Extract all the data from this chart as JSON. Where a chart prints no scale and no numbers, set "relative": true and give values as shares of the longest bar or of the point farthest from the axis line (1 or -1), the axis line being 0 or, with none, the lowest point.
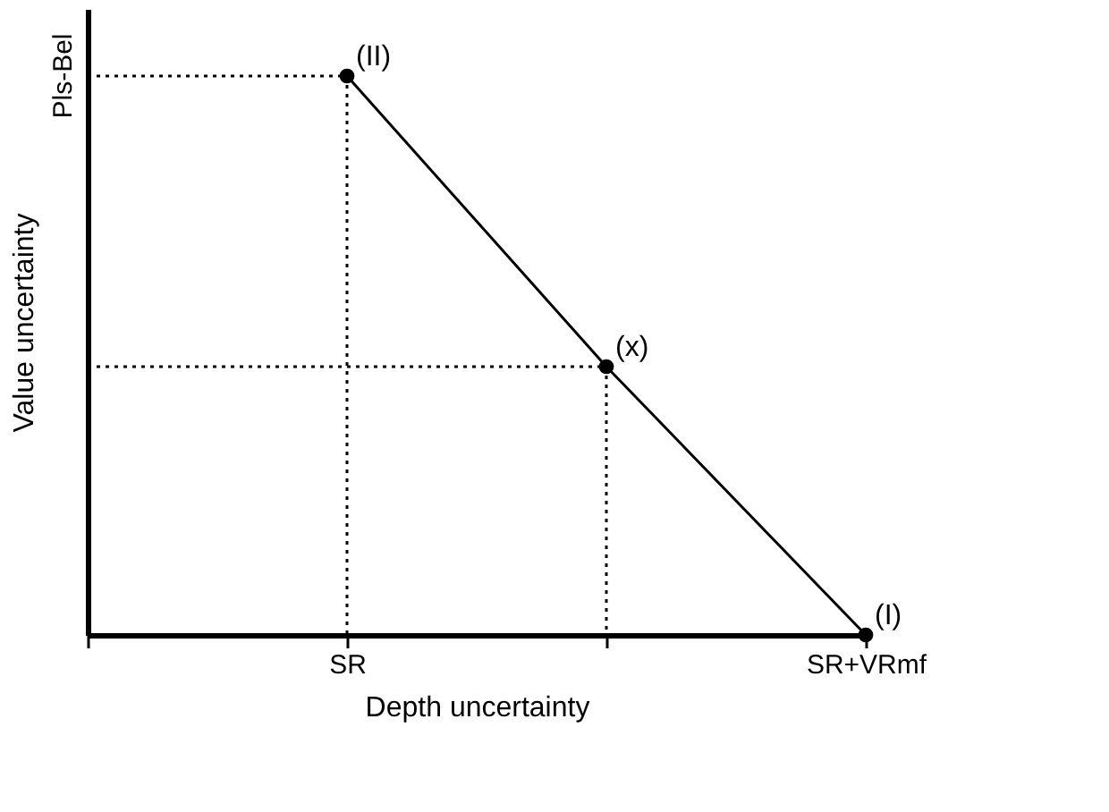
{
  "chart_data": {
    "type": "line",
    "xlabel": "Depth uncertainty",
    "ylabel": "Value uncertainty",
    "categories": [
      null,
      "SR",
      null,
      "SR+VRmf"
    ],
    "relative": true,
    "grid": false,
    "series": [
      {
        "values": [
          null,
          1,
          0.48,
          0
        ],
        "color": "#000000",
        "line_style": "solid",
        "marker": "circle"
      },
      {
        "type": "step",
        "values": [
          1,
          1,
          0,
          null
        ],
        "color": "#000000",
        "line_style": "dotted",
        "marker": "none"
      },
      {
        "type": "step",
        "values": [
          0.48,
          0.48,
          0.48,
          0
        ],
        "color": "#000000",
        "line_style": "dotted",
        "marker": "none"
      }
    ],
    "annotations": [
      "(II)",
      "(x)",
      "(I)",
      "Pls-Bel"
    ]
  }
}
